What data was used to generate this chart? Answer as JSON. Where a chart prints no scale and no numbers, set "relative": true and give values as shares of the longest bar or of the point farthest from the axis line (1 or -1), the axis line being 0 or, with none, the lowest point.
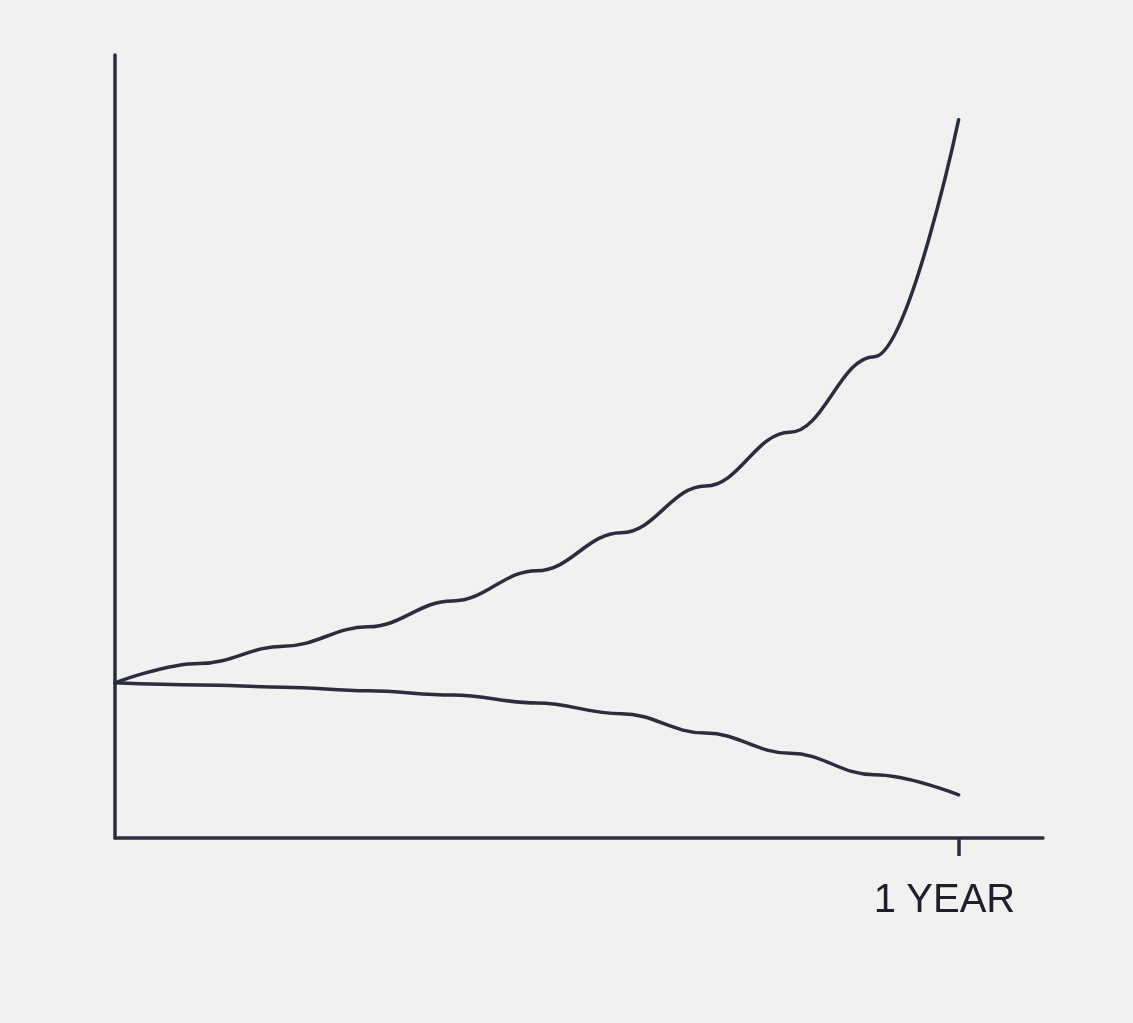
{
  "chart_data": {
    "type": "line",
    "relative": true,
    "categories": [
      null,
      null,
      null,
      null,
      null,
      null,
      null,
      null,
      null,
      null,
      null,
      null
    ],
    "grid": false,
    "line_style": "solid",
    "annotations": [
      "1 YEAR"
    ],
    "series": [
      {
        "color": "#2a2d3e",
        "values": [
          0.216,
          0.243,
          0.267,
          0.294,
          0.33,
          0.372,
          0.425,
          0.49,
          0.565,
          0.67,
          1,
          null
        ]
      },
      {
        "color": "#2a2d3e",
        "values": [
          0.216,
          0.213,
          0.21,
          0.205,
          0.199,
          0.188,
          0.173,
          0.146,
          0.118,
          0.088,
          0.06,
          null
        ]
      }
    ]
  }
}
